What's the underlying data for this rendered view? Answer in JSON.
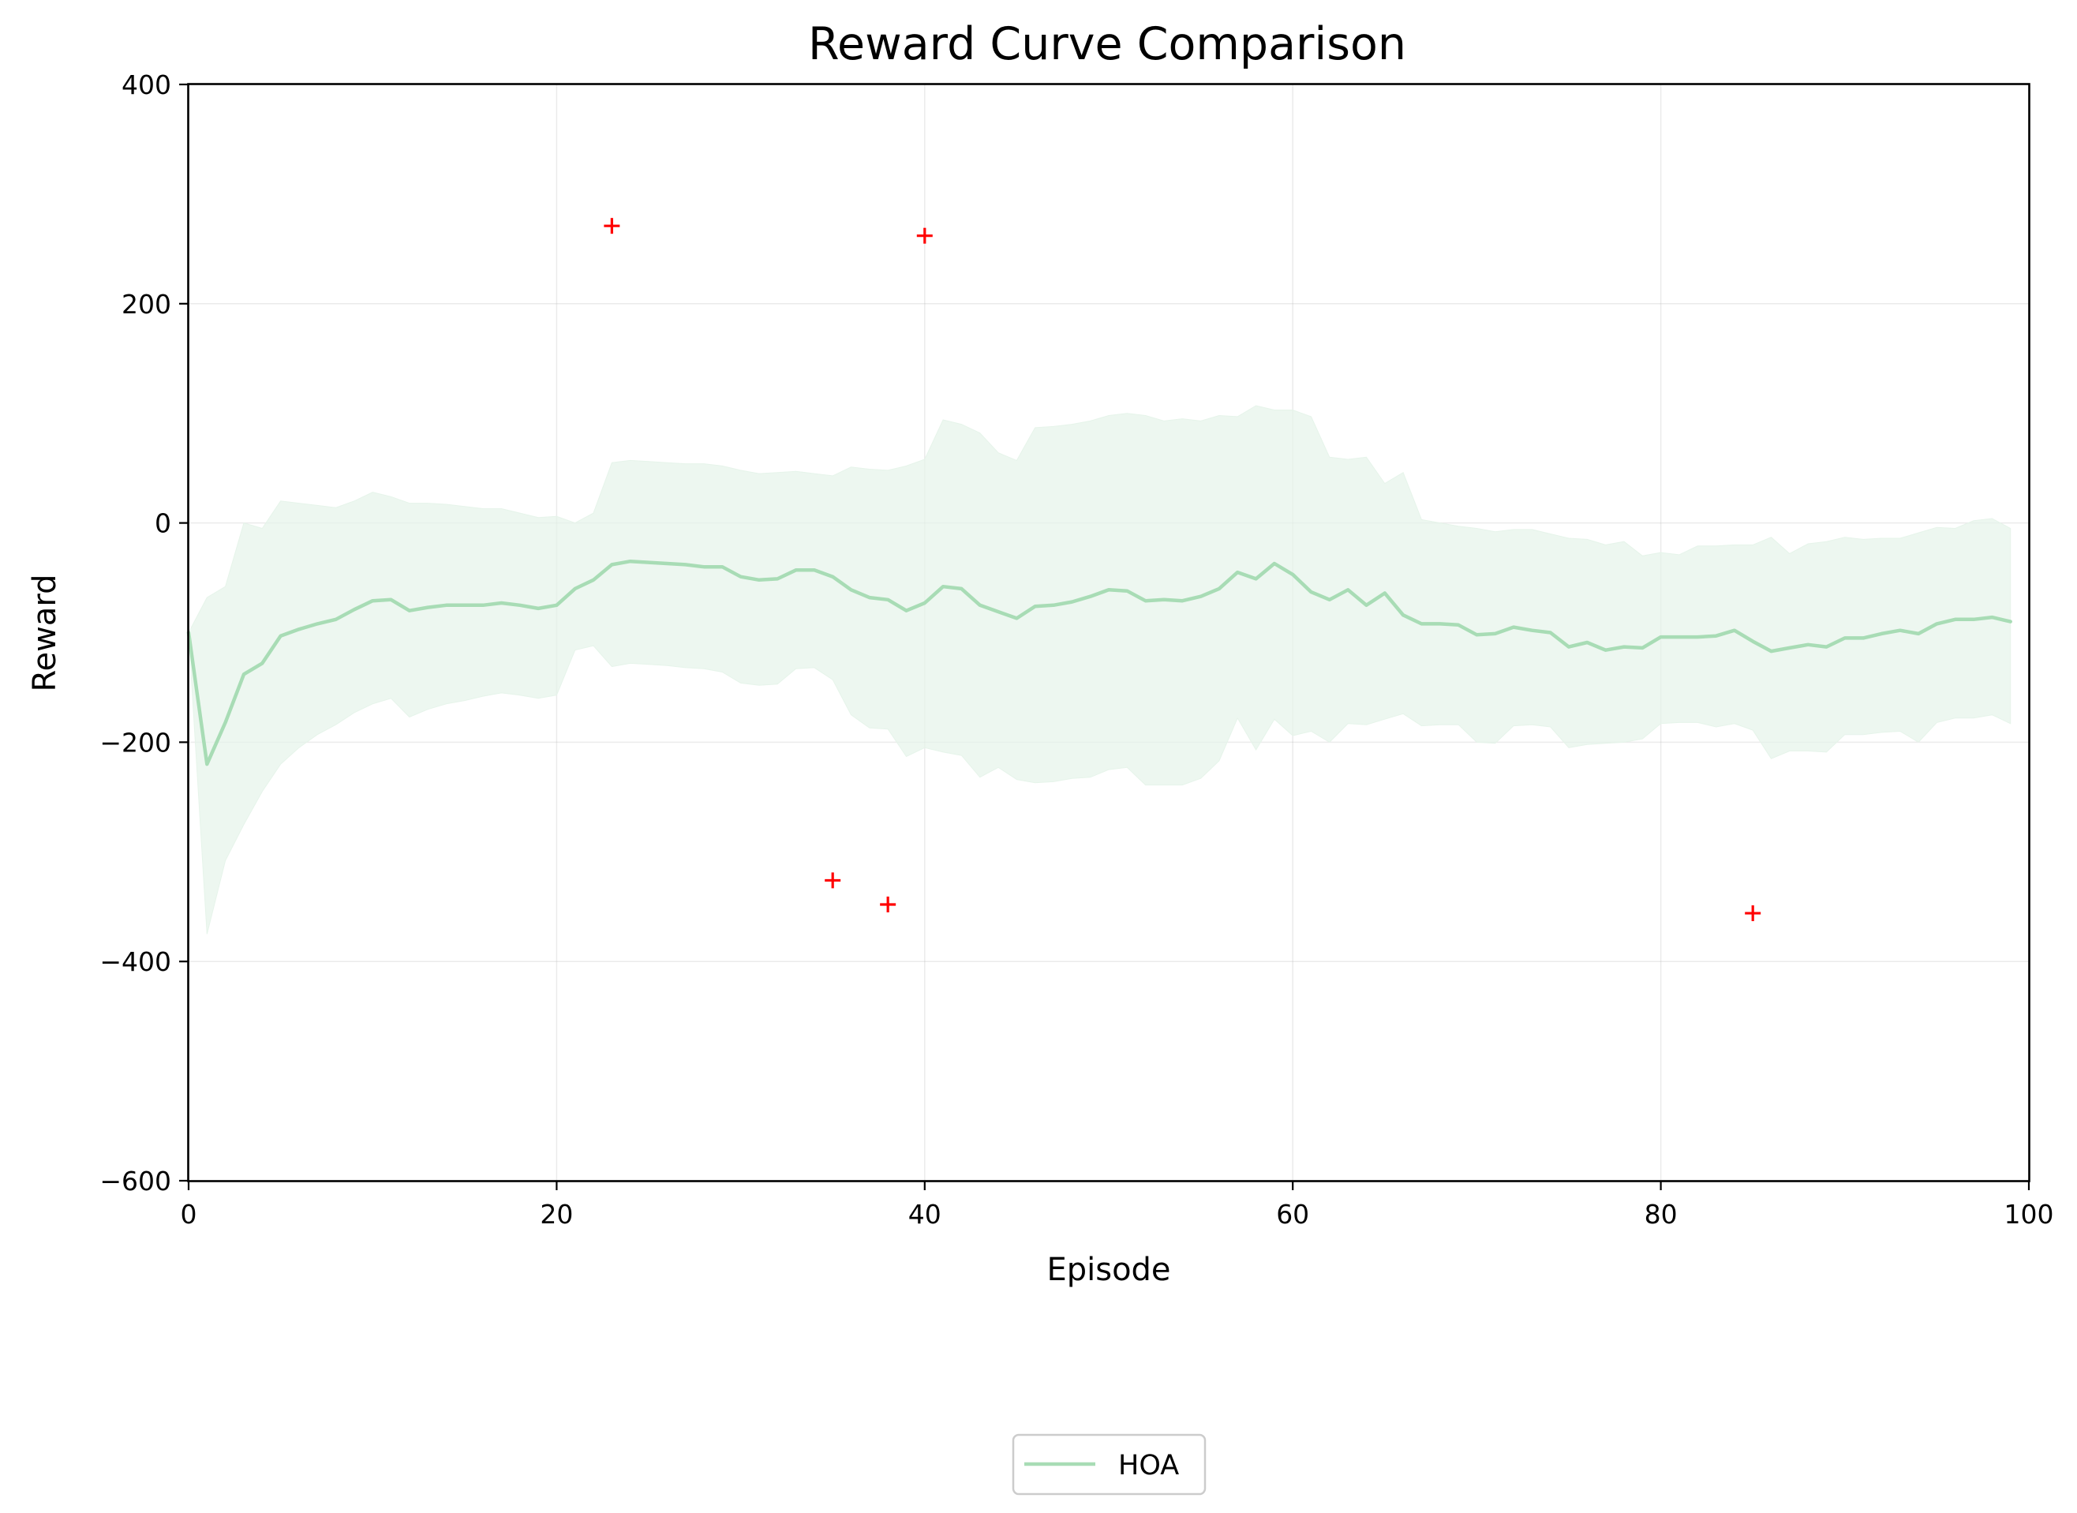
{
  "chart_data": {
    "type": "line",
    "title": "Reward Curve Comparison",
    "xlabel": "Episode",
    "ylabel": "Reward",
    "xlim": [
      0,
      100
    ],
    "ylim": [
      -600,
      400
    ],
    "x_ticks": [
      0,
      20,
      40,
      60,
      80,
      100
    ],
    "x_tick_labels": [
      "0",
      "20",
      "40",
      "60",
      "80",
      "100"
    ],
    "y_ticks": [
      -600,
      -400,
      -200,
      0,
      200,
      400
    ],
    "y_tick_labels": [
      "−600",
      "−400",
      "−200",
      "0",
      "200",
      "400"
    ],
    "grid": true,
    "legend_position": "bottom-center",
    "colors": {
      "line": "#a8dcb5",
      "band": "#e6f4ea",
      "markers": "#ff0000"
    },
    "series": [
      {
        "name": "HOA",
        "x": [
          0,
          1,
          2,
          3,
          4,
          5,
          6,
          7,
          8,
          9,
          10,
          11,
          12,
          13,
          14,
          15,
          16,
          17,
          18,
          19,
          20,
          21,
          22,
          23,
          24,
          25,
          26,
          27,
          28,
          29,
          30,
          31,
          32,
          33,
          34,
          35,
          36,
          37,
          38,
          39,
          40,
          41,
          42,
          43,
          44,
          45,
          46,
          47,
          48,
          49,
          50,
          51,
          52,
          53,
          54,
          55,
          56,
          57,
          58,
          59,
          60,
          61,
          62,
          63,
          64,
          65,
          66,
          67,
          68,
          69,
          70,
          71,
          72,
          73,
          74,
          75,
          76,
          77,
          78,
          79,
          80,
          81,
          82,
          83,
          84,
          85,
          86,
          87,
          88,
          89,
          90,
          91,
          92,
          93,
          94,
          95,
          96,
          97,
          98,
          99
        ],
        "mean": [
          -100,
          -220,
          -182,
          -138,
          -128,
          -103,
          -97,
          -92,
          -88,
          -79,
          -71,
          -70,
          -80,
          -77,
          -75,
          -75,
          -75,
          -73,
          -75,
          -78,
          -75,
          -60,
          -52,
          -38,
          -35,
          -36,
          -37,
          -38,
          -40,
          -40,
          -49,
          -52,
          -51,
          -43,
          -43,
          -49,
          -61,
          -68,
          -70,
          -80,
          -73,
          -58,
          -60,
          -75,
          -81,
          -87,
          -76,
          -75,
          -72,
          -67,
          -61,
          -62,
          -71,
          -70,
          -71,
          -67,
          -60,
          -45,
          -51,
          -37,
          -47,
          -63,
          -70,
          -61,
          -75,
          -64,
          -84,
          -92,
          -92,
          -93,
          -102,
          -101,
          -95,
          -98,
          -100,
          -113,
          -109,
          -116,
          -113,
          -114,
          -104,
          -104,
          -104,
          -103,
          -98,
          -108,
          -117,
          -114,
          -111,
          -113,
          -105,
          -105,
          -101,
          -98,
          -101,
          -92,
          -88,
          -88,
          -86,
          -90
        ],
        "upper": [
          -100,
          -68,
          -58,
          0,
          -5,
          20,
          18,
          16,
          14,
          20,
          28,
          24,
          18,
          18,
          17,
          15,
          13,
          13,
          9,
          5,
          6,
          0,
          9,
          55,
          57,
          56,
          55,
          54,
          54,
          52,
          48,
          45,
          46,
          47,
          45,
          43,
          51,
          49,
          48,
          52,
          58,
          94,
          90,
          82,
          64,
          57,
          87,
          88,
          90,
          93,
          98,
          100,
          98,
          93,
          95,
          93,
          98,
          97,
          107,
          103,
          103,
          97,
          60,
          58,
          60,
          36,
          46,
          3,
          0,
          -3,
          -5,
          -8,
          -6,
          -6,
          -10,
          -14,
          -15,
          -20,
          -17,
          -30,
          -27,
          -29,
          -21,
          -21,
          -20,
          -20,
          -13,
          -28,
          -19,
          -17,
          -13,
          -15,
          -14,
          -14,
          -9,
          -4,
          -5,
          2,
          4,
          -5
        ],
        "lower": [
          -100,
          -375,
          -308,
          -275,
          -245,
          -220,
          -205,
          -193,
          -184,
          -173,
          -165,
          -160,
          -177,
          -170,
          -165,
          -162,
          -158,
          -155,
          -157,
          -160,
          -157,
          -116,
          -112,
          -131,
          -128,
          -129,
          -130,
          -132,
          -133,
          -136,
          -146,
          -148,
          -147,
          -133,
          -132,
          -143,
          -175,
          -187,
          -188,
          -213,
          -205,
          -209,
          -212,
          -232,
          -223,
          -234,
          -237,
          -236,
          -233,
          -232,
          -225,
          -223,
          -239,
          -239,
          -239,
          -233,
          -217,
          -178,
          -207,
          -179,
          -194,
          -190,
          -200,
          -183,
          -184,
          -179,
          -174,
          -185,
          -184,
          -184,
          -200,
          -201,
          -185,
          -184,
          -186,
          -205,
          -202,
          -201,
          -200,
          -197,
          -183,
          -182,
          -182,
          -186,
          -183,
          -189,
          -215,
          -208,
          -208,
          -209,
          -193,
          -193,
          -191,
          -190,
          -200,
          -182,
          -178,
          -178,
          -175,
          -183
        ]
      }
    ],
    "markers": {
      "symbol": "+",
      "points": [
        {
          "x": 23,
          "y": 271
        },
        {
          "x": 40,
          "y": 262
        },
        {
          "x": 35,
          "y": -326
        },
        {
          "x": 38,
          "y": -348
        },
        {
          "x": 85,
          "y": -356
        }
      ]
    }
  }
}
